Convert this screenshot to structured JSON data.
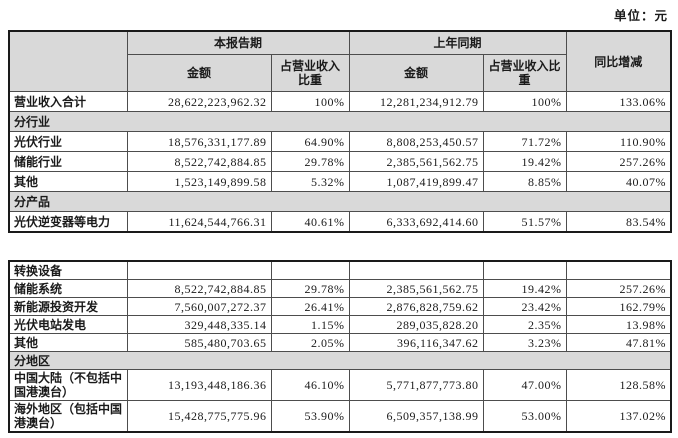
{
  "unit_label": "单位：元",
  "colors": {
    "header_fill": "#d9d9d9",
    "border": "#4d4d4d",
    "outer_border": "#1a1a1a",
    "text": "#1a1a1a"
  },
  "tables": [
    {
      "header": {
        "current_period": "本报告期",
        "prior_period": "上年同期",
        "yoy_change": "同比增减",
        "sub": [
          "金额",
          "占营业收入比重",
          "金额",
          "占营业收入比重"
        ]
      },
      "rows": [
        {
          "type": "data",
          "label": "营业收入合计",
          "values": [
            "28,622,223,962.32",
            "100%",
            "12,281,234,912.79",
            "100%",
            "133.06%"
          ]
        },
        {
          "type": "section",
          "label": "分行业"
        },
        {
          "type": "data",
          "label": "光伏行业",
          "values": [
            "18,576,331,177.89",
            "64.90%",
            "8,808,253,450.57",
            "71.72%",
            "110.90%"
          ]
        },
        {
          "type": "data",
          "label": "储能行业",
          "values": [
            "8,522,742,884.85",
            "29.78%",
            "2,385,561,562.75",
            "19.42%",
            "257.26%"
          ]
        },
        {
          "type": "data",
          "label": "其他",
          "values": [
            "1,523,149,899.58",
            "5.32%",
            "1,087,419,899.47",
            "8.85%",
            "40.07%"
          ]
        },
        {
          "type": "section",
          "label": "分产品"
        },
        {
          "type": "data",
          "label": "光伏逆变器等电力",
          "values": [
            "11,624,544,766.31",
            "40.61%",
            "6,333,692,414.60",
            "51.57%",
            "83.54%"
          ]
        }
      ]
    },
    {
      "rows": [
        {
          "type": "data",
          "label": "转换设备",
          "values": [
            "",
            "",
            "",
            "",
            ""
          ]
        },
        {
          "type": "data",
          "label": "储能系统",
          "values": [
            "8,522,742,884.85",
            "29.78%",
            "2,385,561,562.75",
            "19.42%",
            "257.26%"
          ]
        },
        {
          "type": "data",
          "label": "新能源投资开发",
          "values": [
            "7,560,007,272.37",
            "26.41%",
            "2,876,828,759.62",
            "23.42%",
            "162.79%"
          ]
        },
        {
          "type": "data",
          "label": "光伏电站发电",
          "values": [
            "329,448,335.14",
            "1.15%",
            "289,035,828.20",
            "2.35%",
            "13.98%"
          ]
        },
        {
          "type": "data",
          "label": "其他",
          "values": [
            "585,480,703.65",
            "2.05%",
            "396,116,347.62",
            "3.23%",
            "47.81%"
          ]
        },
        {
          "type": "section",
          "label": "分地区"
        },
        {
          "type": "data",
          "label": "中国大陆（不包括中国港澳台）",
          "values": [
            "13,193,448,186.36",
            "46.10%",
            "5,771,877,773.80",
            "47.00%",
            "128.58%"
          ]
        },
        {
          "type": "data",
          "label": "海外地区（包括中国港澳台）",
          "values": [
            "15,428,775,775.96",
            "53.90%",
            "6,509,357,138.99",
            "53.00%",
            "137.02%"
          ]
        }
      ]
    }
  ]
}
